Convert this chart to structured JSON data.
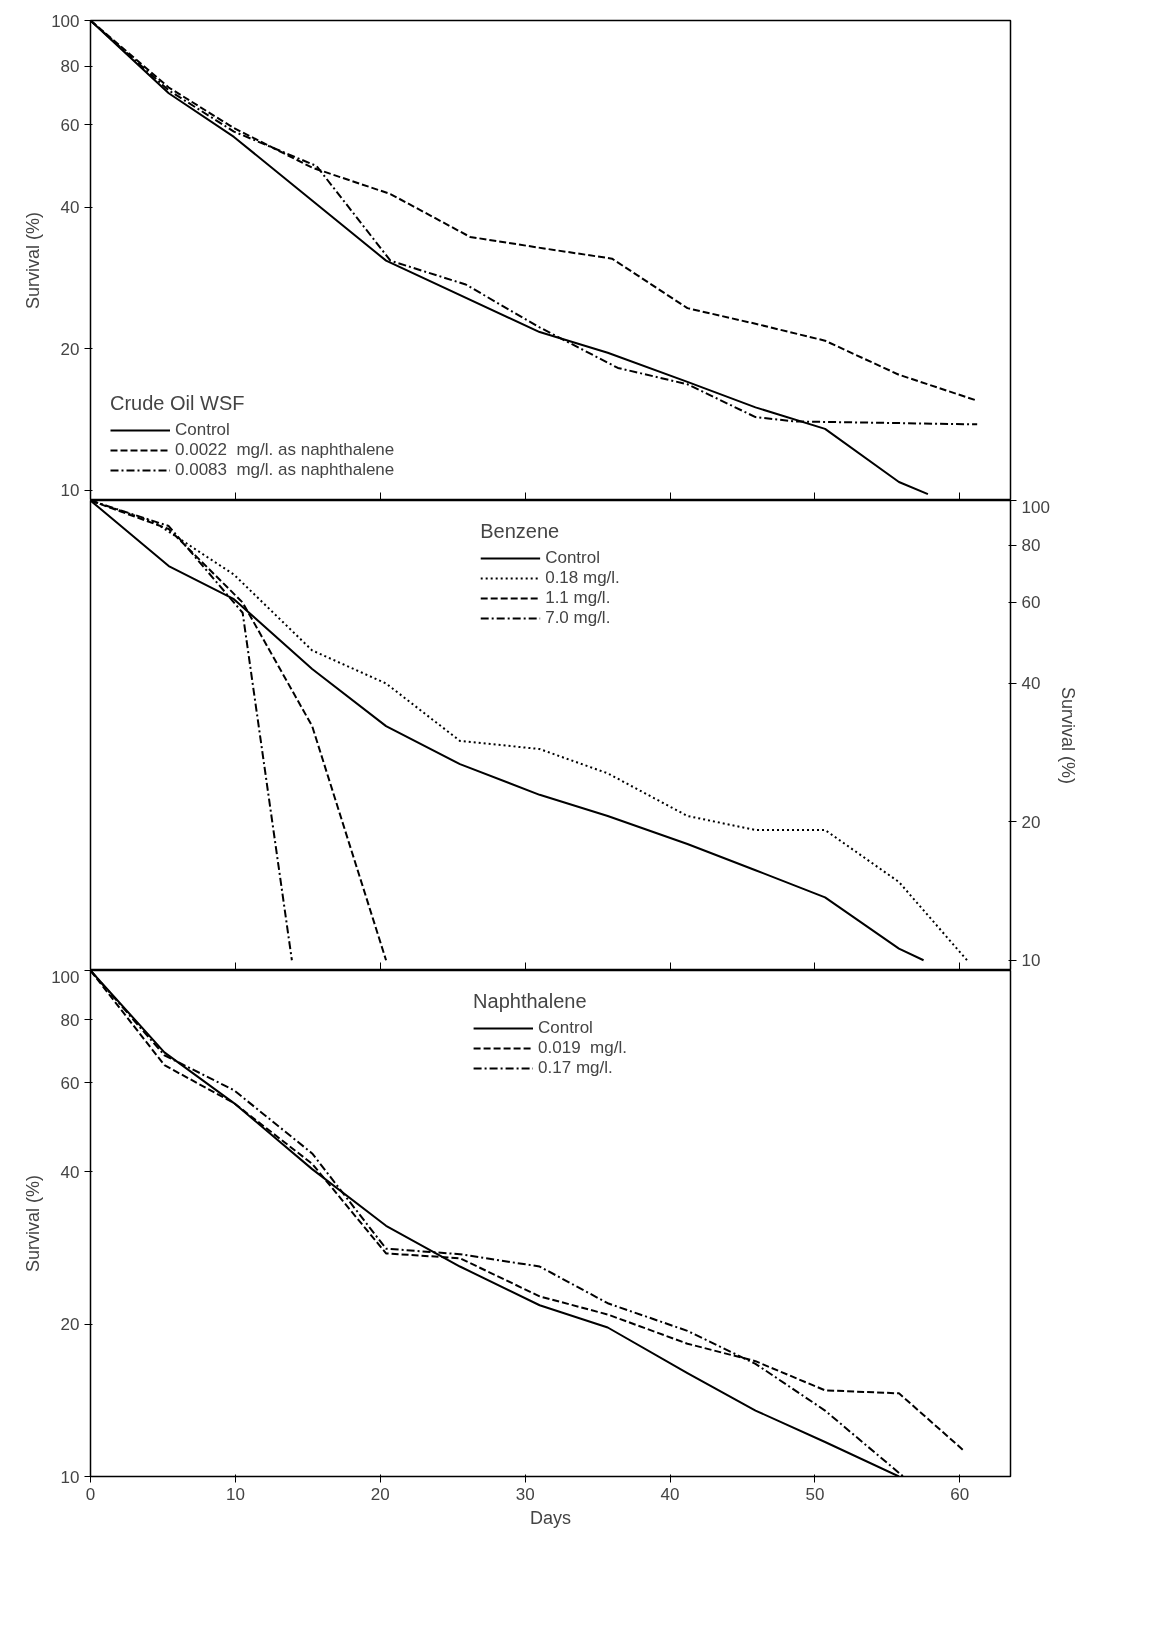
{
  "chart_data": [
    {
      "type": "line",
      "legend_title": "Crude Oil WSF",
      "ylabel": "Survival (%)",
      "legend": "bottom left",
      "tick_labels": "y",
      "grid": false,
      "marker": "none",
      "xlim": [
        0,
        63.5
      ],
      "xticks": [
        0,
        10,
        20,
        30,
        40,
        50,
        60
      ],
      "ylim": [
        9.5,
        100
      ],
      "log": true,
      "yticks": [
        10,
        20,
        40,
        60,
        80,
        100
      ],
      "series": [
        {
          "name": "Control",
          "color": "#000000",
          "line_style": "solid",
          "x": [
            0,
            5.4,
            9.9,
            20.4,
            31,
            35.7,
            41.2,
            45.9,
            50.7,
            55.8,
            57.8
          ],
          "values": [
            100,
            70,
            56.5,
            30.8,
            21.7,
            19.6,
            17,
            15,
            13.5,
            10.4,
            9.8
          ]
        },
        {
          "name": "0.0022  mg/l. as naphthalene",
          "color": "#000000",
          "line_style": "dashed",
          "x": [
            0,
            5.4,
            9.9,
            15.3,
            20.7,
            26.2,
            31.3,
            36,
            41.2,
            45.9,
            50.7,
            55.8,
            61.2
          ],
          "values": [
            100,
            72,
            59,
            48.6,
            42.7,
            34.6,
            32.7,
            31.1,
            24.4,
            22.6,
            20.8,
            17.6,
            15.5
          ]
        },
        {
          "name": "0.0083  mg/l. as naphthalene",
          "color": "#000000",
          "line_style": "dashdot",
          "x": [
            0,
            5.4,
            9.9,
            15.6,
            20.7,
            25.9,
            31,
            36.4,
            41.2,
            45.9,
            48.6,
            61.2
          ],
          "values": [
            100,
            71,
            58,
            49,
            30.8,
            27.4,
            22.2,
            18.2,
            16.8,
            14.3,
            14,
            13.8
          ]
        }
      ]
    },
    {
      "type": "line",
      "legend_title": "Benzene",
      "y2label": "Survival (%)",
      "legend": "top",
      "tick_labels": "y",
      "grid": false,
      "marker": "none",
      "xlim": [
        0,
        63.5
      ],
      "xticks": [
        0,
        10,
        20,
        30,
        40,
        50,
        60
      ],
      "y2lim": [
        9.5,
        100
      ],
      "log": "y2",
      "y2ticks": [
        10,
        20,
        40,
        60,
        80,
        100
      ],
      "series": [
        {
          "name": "Control",
          "color": "#000000",
          "line_style": "solid",
          "axis": "y2",
          "x": [
            0,
            5.4,
            9.9,
            15.3,
            20.4,
            25.5,
            31,
            35.7,
            41.2,
            45.9,
            50.7,
            55.8,
            57.5
          ],
          "values": [
            100,
            72,
            61,
            43,
            32.3,
            26.7,
            22.9,
            20.6,
            17.9,
            15.7,
            13.7,
            10.6,
            10
          ]
        },
        {
          "name": "0.18 mg/l.",
          "color": "#000000",
          "line_style": "dotted",
          "axis": "y2",
          "x": [
            0,
            4.4,
            9.9,
            15.3,
            20.4,
            25.5,
            31,
            35.7,
            41.2,
            45.9,
            50.7,
            55.8,
            60.5
          ],
          "values": [
            100,
            89.7,
            69,
            47.2,
            40,
            30,
            28.8,
            25.5,
            20.6,
            19.2,
            19.2,
            14.8,
            10
          ]
        },
        {
          "name": "1.1 mg/l.",
          "color": "#000000",
          "line_style": "dashed",
          "axis": "y2",
          "x": [
            0,
            5.4,
            10.5,
            15.3,
            20.4
          ],
          "values": [
            100,
            86.7,
            60,
            32.3,
            10
          ]
        },
        {
          "name": "7.0 mg/l.",
          "color": "#000000",
          "line_style": "dashdot",
          "axis": "y2",
          "x": [
            0,
            5.4,
            10.5,
            13.9
          ],
          "values": [
            100,
            88,
            57,
            10
          ]
        }
      ]
    },
    {
      "type": "line",
      "legend_title": "Naphthalene",
      "ylabel": "Survival (%)",
      "xlabel": "Days",
      "legend": "top",
      "grid": false,
      "marker": "none",
      "xlim": [
        0,
        63.5
      ],
      "xticks": [
        0,
        10,
        20,
        30,
        40,
        50,
        60
      ],
      "ylim": [
        10,
        100
      ],
      "log": true,
      "yticks": [
        10,
        20,
        40,
        60,
        80,
        100
      ],
      "series": [
        {
          "name": "Control",
          "color": "#000000",
          "line_style": "solid",
          "x": [
            0,
            5.1,
            9.9,
            15.3,
            20.4,
            25.5,
            31,
            35.7,
            41.2,
            45.9,
            50.7,
            55.8
          ],
          "values": [
            100,
            68.9,
            54.7,
            40.5,
            31.3,
            26,
            21.8,
            19.7,
            16,
            13.5,
            11.7,
            10
          ]
        },
        {
          "name": "0.019  mg/l.",
          "color": "#000000",
          "line_style": "dashed",
          "x": [
            0,
            5.1,
            9.9,
            15.3,
            20.4,
            25.5,
            31,
            35.7,
            41.2,
            45.9,
            50.7,
            55.8,
            60.2
          ],
          "values": [
            100,
            65,
            54.7,
            41.5,
            27.6,
            27,
            22.7,
            20.9,
            18.3,
            16.9,
            14.8,
            14.6,
            11.3
          ]
        },
        {
          "name": "0.17 mg/l.",
          "color": "#000000",
          "line_style": "dashdot",
          "x": [
            0,
            5.1,
            9.9,
            15.3,
            20.4,
            25.5,
            31,
            35.7,
            41.2,
            45.9,
            50.7,
            56.1
          ],
          "values": [
            100,
            68,
            58,
            43.5,
            28.2,
            27.5,
            26,
            22,
            19.4,
            16.7,
            13.5,
            10
          ]
        }
      ]
    }
  ]
}
